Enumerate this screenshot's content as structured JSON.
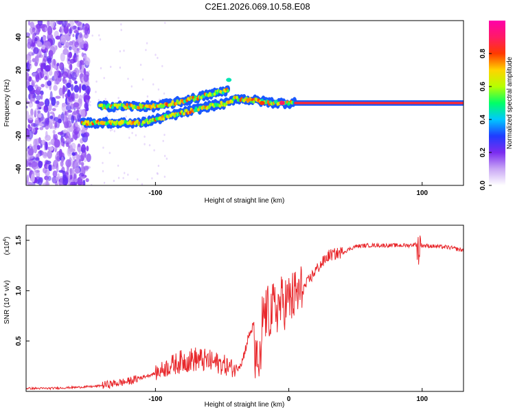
{
  "title": "C2E1.2026.069.10.58.E08",
  "chart_data": [
    {
      "type": "heatmap",
      "title": "C2E1.2026.069.10.58.E08",
      "xlabel": "Height of straight line (km)",
      "ylabel": "Frequency (Hz)",
      "xlim": [
        -197,
        131
      ],
      "ylim": [
        -50,
        50
      ],
      "xticks": [
        -100,
        100
      ],
      "yticks": [
        -40,
        -20,
        0,
        20,
        40
      ],
      "colorbar": {
        "label": "Normalized spectral amplitude",
        "range": [
          0,
          1
        ],
        "ticks": [
          0.0,
          0.2,
          0.4,
          0.6,
          0.8
        ],
        "tick_labels": [
          "0.0",
          "0.2",
          "0.4",
          "0.6",
          "0.8"
        ],
        "colors": [
          "#ffffff",
          "#c9a7f5",
          "#7b2cf0",
          "#1f3cff",
          "#00c8ff",
          "#00ff66",
          "#b6ff00",
          "#ffd400",
          "#ff3a00",
          "#ff1a66",
          "#ff00aa"
        ]
      },
      "ridge": {
        "segments": [
          {
            "x": [
              -155,
              -110
            ],
            "y": [
              -12,
              -12
            ]
          },
          {
            "x": [
              -142,
              -100,
              -80,
              -60,
              -45
            ],
            "y": [
              -2,
              -2,
              1,
              5,
              8
            ]
          },
          {
            "x": [
              -110,
              -80,
              -60,
              -45,
              -40,
              -30,
              -10,
              5
            ],
            "y": [
              -12,
              -6,
              -2,
              0,
              3,
              2,
              0,
              0
            ]
          },
          {
            "x": [
              5,
              131
            ],
            "y": [
              0,
              0
            ]
          }
        ],
        "hotspots": [
          {
            "x": -140,
            "y": -12,
            "amp": 0.72
          },
          {
            "x": -126,
            "y": -12,
            "amp": 0.68
          },
          {
            "x": -95,
            "y": -2,
            "amp": 0.55
          },
          {
            "x": -45,
            "y": 14,
            "amp": 0.45
          },
          {
            "x": -30,
            "y": 2,
            "amp": 0.75
          },
          {
            "x": -20,
            "y": 0,
            "amp": 0.8
          },
          {
            "x": -5,
            "y": 0,
            "amp": 0.9
          }
        ],
        "noise_band_x": [
          -197,
          -150
        ]
      }
    },
    {
      "type": "line",
      "xlabel": "Height of straight line (km)",
      "ylabel": "SNR (10 * v/v)",
      "multiplier_label": "(x10",
      "multiplier_exponent": "4",
      "multiplier_close": ")",
      "xlim": [
        -197,
        131
      ],
      "ylim": [
        0,
        1.65
      ],
      "xticks": [
        -100,
        0,
        100
      ],
      "yticks": [
        0.5,
        1.0,
        1.5
      ],
      "ytick_labels": [
        "0.5",
        "1.0",
        "1.5"
      ],
      "color": "#e8262a",
      "series": [
        {
          "name": "SNR",
          "x": [
            -197,
            -180,
            -160,
            -145,
            -130,
            -120,
            -110,
            -100,
            -90,
            -80,
            -70,
            -60,
            -50,
            -40,
            -35,
            -30,
            -25,
            -22,
            -20,
            -15,
            -10,
            -5,
            0,
            10,
            20,
            30,
            40,
            50,
            60,
            70,
            80,
            90,
            95,
            100,
            110,
            120,
            131
          ],
          "y": [
            0.03,
            0.03,
            0.04,
            0.05,
            0.08,
            0.1,
            0.14,
            0.18,
            0.25,
            0.3,
            0.32,
            0.3,
            0.27,
            0.22,
            0.3,
            0.55,
            0.7,
            0.78,
            0.75,
            0.78,
            0.82,
            0.88,
            0.9,
            1.0,
            1.2,
            1.35,
            1.38,
            1.44,
            1.45,
            1.45,
            1.45,
            1.45,
            1.46,
            1.45,
            1.44,
            1.43,
            1.4
          ]
        }
      ]
    }
  ]
}
